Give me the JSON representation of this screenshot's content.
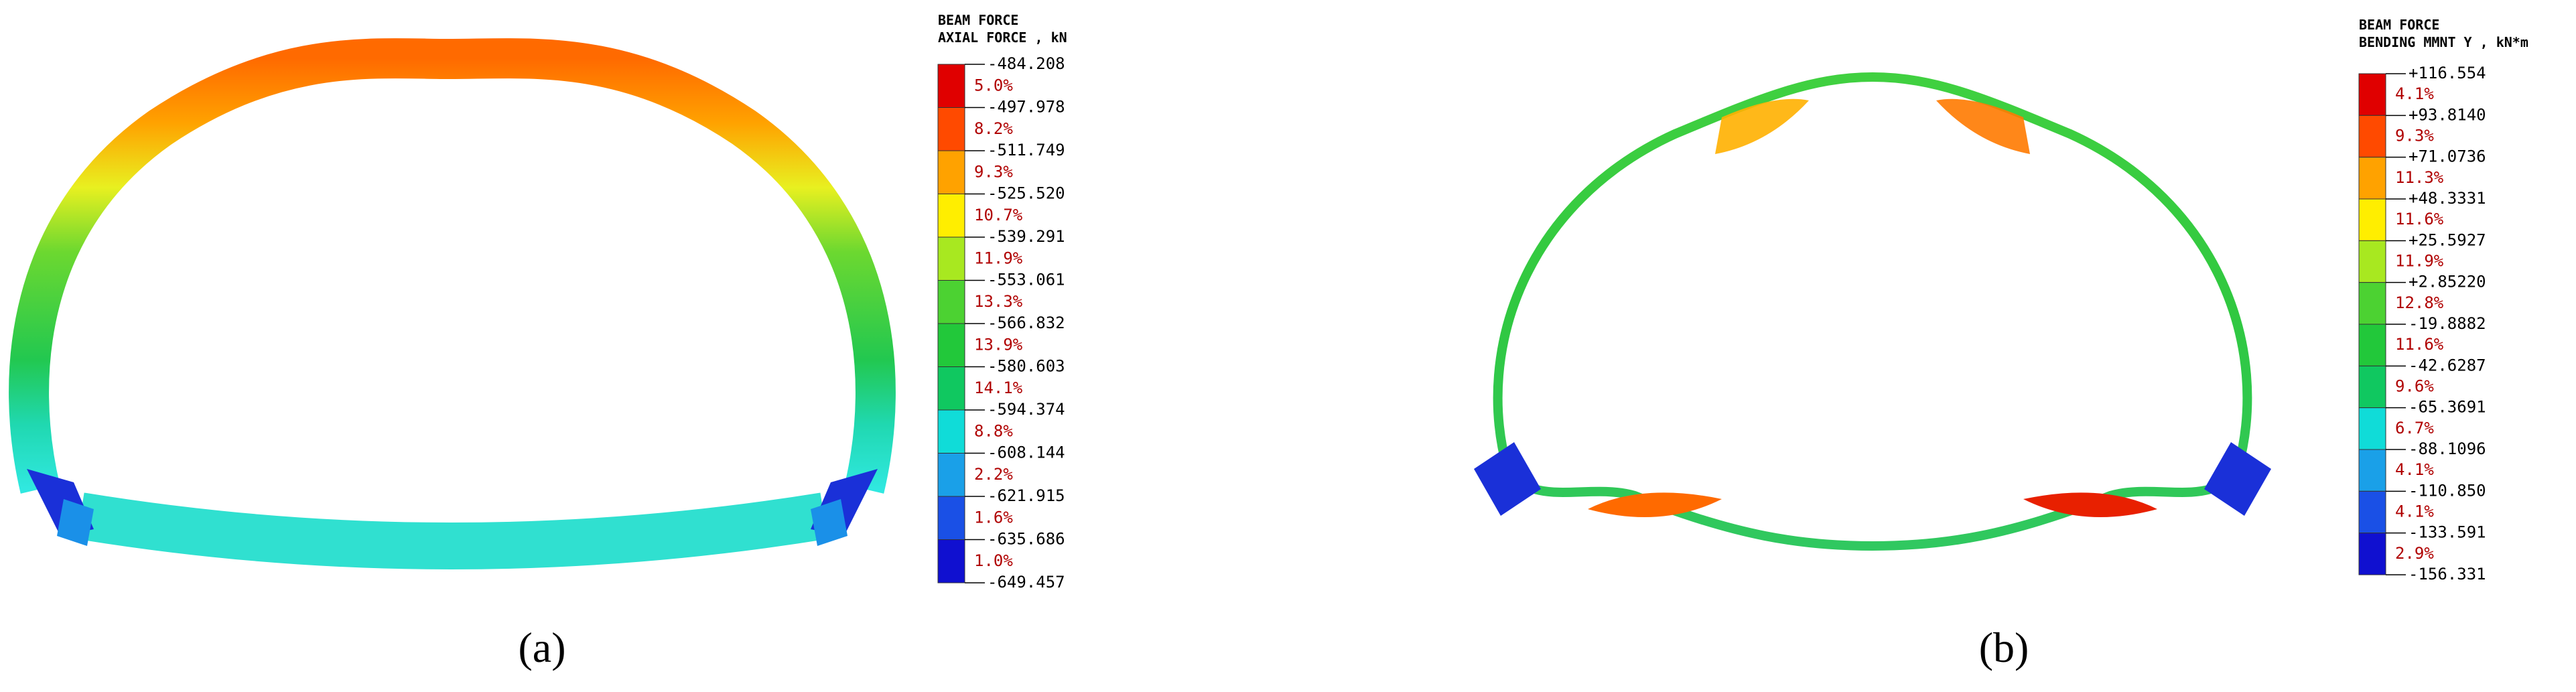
{
  "panels": [
    {
      "legend": {
        "title": [
          "BEAM FORCE",
          "AXIAL FORCE , kN"
        ],
        "levels": [
          "-484.208",
          "-497.978",
          "-511.749",
          "-525.520",
          "-539.291",
          "-553.061",
          "-566.832",
          "-580.603",
          "-594.374",
          "-608.144",
          "-621.915",
          "-635.686",
          "-649.457"
        ],
        "percents": [
          "5.0%",
          "8.2%",
          "9.3%",
          "10.7%",
          "11.9%",
          "13.3%",
          "13.9%",
          "14.1%",
          "8.8%",
          "2.2%",
          "1.6%",
          "1.0%"
        ],
        "colors": [
          "#e00000",
          "#ff4a00",
          "#ffa200",
          "#ffee00",
          "#a8e820",
          "#4cd232",
          "#22c83a",
          "#10c860",
          "#10dcd8",
          "#1aa0e8",
          "#1a50e6",
          "#1010d0"
        ]
      },
      "caption": "(a)"
    },
    {
      "legend": {
        "title": [
          "BEAM FORCE",
          "BENDING MMNT Y , kN*m"
        ],
        "levels": [
          "+116.554",
          "+93.8140",
          "+71.0736",
          "+48.3331",
          "+25.5927",
          "+2.85220",
          "-19.8882",
          "-42.6287",
          "-65.3691",
          "-88.1096",
          "-110.850",
          "-133.591",
          "-156.331"
        ],
        "percents": [
          "4.1%",
          "9.3%",
          "11.3%",
          "11.6%",
          "11.9%",
          "12.8%",
          "11.6%",
          "9.6%",
          "6.7%",
          "4.1%",
          "4.1%",
          "2.9%"
        ],
        "colors": [
          "#e00000",
          "#ff4a00",
          "#ffa200",
          "#ffee00",
          "#a8e820",
          "#4cd232",
          "#22c83a",
          "#10c860",
          "#10dcd8",
          "#1aa0e8",
          "#1a50e6",
          "#1010d0"
        ]
      },
      "caption": "(b)"
    }
  ]
}
